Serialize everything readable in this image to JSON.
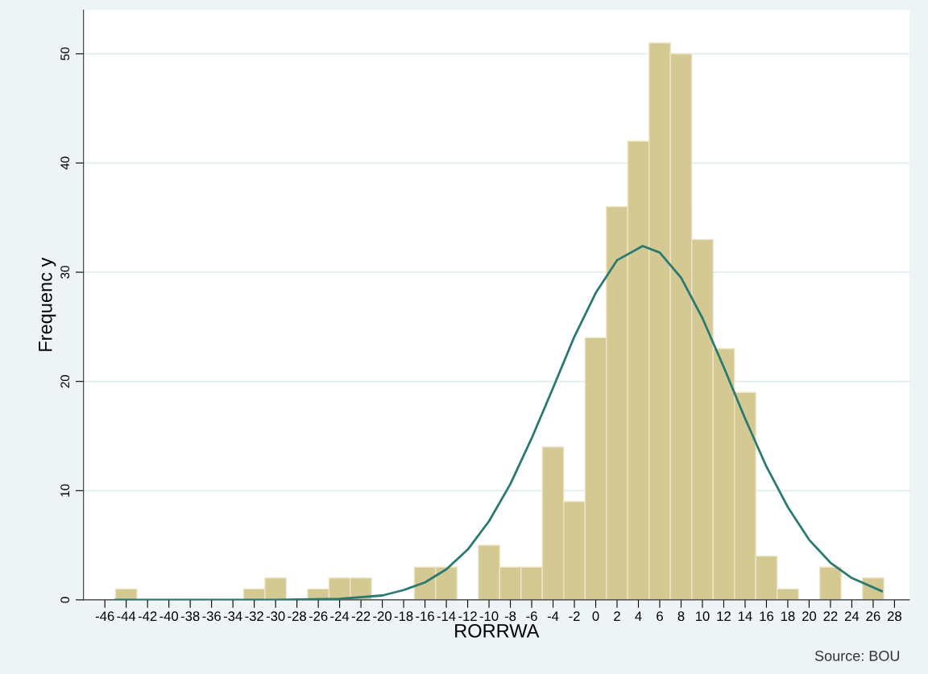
{
  "chart_data": {
    "type": "histogram",
    "xlabel": "RORRWA",
    "ylabel": "Frequenc y",
    "annotations": [
      "Source: BOU"
    ],
    "series": [
      {
        "color": "#d4c993",
        "bins": [
          -45,
          -43,
          -41,
          -39,
          -37,
          -35,
          -33,
          -31,
          -29,
          -27,
          -25,
          -23,
          -21,
          -19,
          -17,
          -15,
          -13,
          -11,
          -9,
          -7,
          -5,
          -3,
          -1,
          1,
          3,
          5,
          7,
          9,
          11,
          13,
          15,
          17,
          19,
          21,
          23,
          25,
          27
        ],
        "values": [
          1,
          0,
          0,
          0,
          0,
          0,
          1,
          2,
          0,
          1,
          2,
          2,
          0,
          0,
          3,
          3,
          0,
          5,
          3,
          3,
          14,
          9,
          24,
          36,
          42,
          51,
          50,
          33,
          23,
          19,
          4,
          1,
          0,
          3,
          0,
          2
        ]
      },
      {
        "type": "line",
        "color": "#2a7a72",
        "x": [
          -45,
          -30,
          -24,
          -20,
          -18,
          -16,
          -14,
          -12,
          -10,
          -8,
          -6,
          -4,
          -2,
          0,
          2,
          4.4,
          6,
          8,
          10,
          12,
          14,
          16,
          18,
          20,
          22,
          24,
          26.8
        ],
        "values": [
          0,
          0,
          0.1,
          0.4,
          0.9,
          1.6,
          2.8,
          4.6,
          7.2,
          10.6,
          14.8,
          19.4,
          24.1,
          28.1,
          31.1,
          32.4,
          31.8,
          29.5,
          25.8,
          21.3,
          16.6,
          12.2,
          8.5,
          5.5,
          3.4,
          2.0,
          0.8
        ]
      }
    ],
    "xlim": [
      -48,
      29.4
    ],
    "xticks": [
      -46,
      -44,
      -42,
      -40,
      -38,
      -36,
      -34,
      -32,
      -30,
      -28,
      -26,
      -24,
      -22,
      -20,
      -18,
      -16,
      -14,
      -12,
      -10,
      -8,
      -6,
      -4,
      -2,
      0,
      2,
      4,
      6,
      8,
      10,
      12,
      14,
      16,
      18,
      20,
      22,
      24,
      26,
      28
    ],
    "ylim": [
      0,
      54
    ],
    "yticks": [
      0,
      10,
      20,
      30,
      40,
      50
    ],
    "grid": "y",
    "marker": "none",
    "line_style": "solid"
  }
}
